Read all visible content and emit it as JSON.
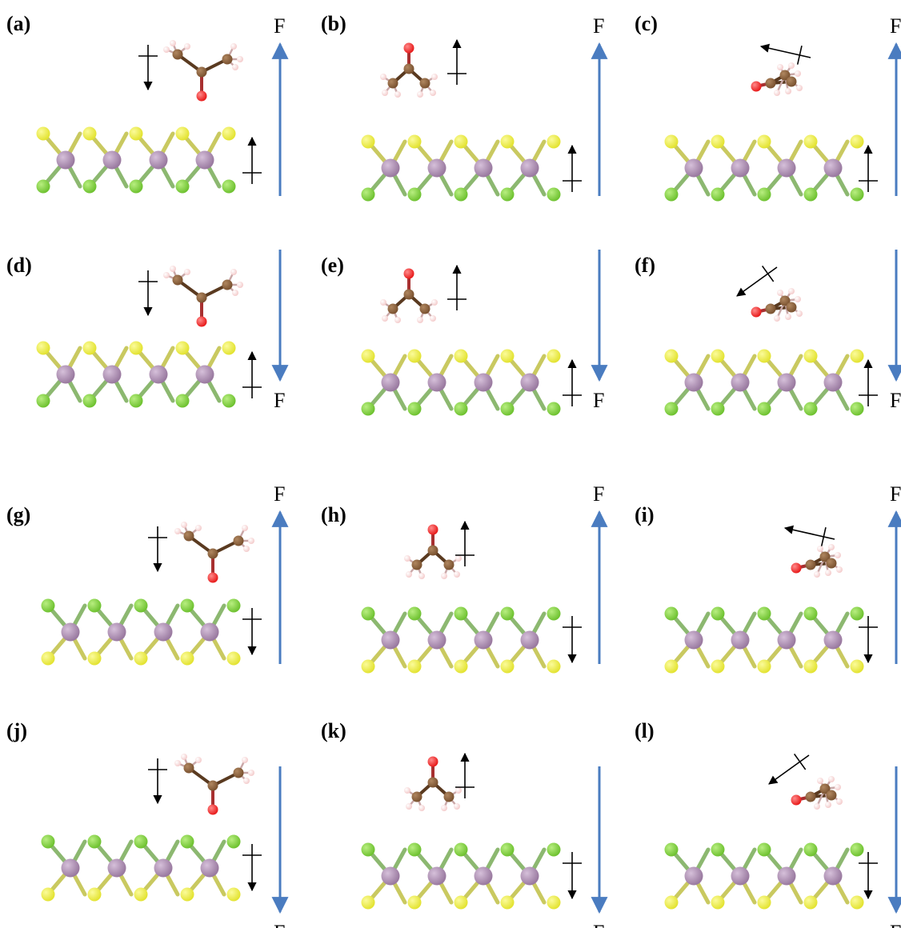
{
  "figure": {
    "field_symbol": "F",
    "colors": {
      "field_arrow": "#4a7cc0",
      "sulfur": "#e3e332",
      "chlorine": "#6fc231",
      "metal": "#9a7aa0",
      "carbon": "#7a5230",
      "oxygen": "#e81c1c",
      "hydrogen": "#f4cccc",
      "bond_metal_S": "#c9c960",
      "bond_metal_Cl": "#8cb870"
    },
    "panels": [
      {
        "label": "(a)",
        "layer_top": "S",
        "field": "up",
        "molecule": "side",
        "mol_dipole": "down",
        "layer_dipole": "up"
      },
      {
        "label": "(b)",
        "layer_top": "S",
        "field": "up",
        "molecule": "front",
        "mol_dipole": "up",
        "layer_dipole": "up"
      },
      {
        "label": "(c)",
        "layer_top": "S",
        "field": "up",
        "molecule": "end",
        "mol_dipole": "left-up",
        "layer_dipole": "up"
      },
      {
        "label": "(d)",
        "layer_top": "S",
        "field": "down",
        "molecule": "side",
        "mol_dipole": "down",
        "layer_dipole": "up"
      },
      {
        "label": "(e)",
        "layer_top": "S",
        "field": "down",
        "molecule": "front",
        "mol_dipole": "up",
        "layer_dipole": "up"
      },
      {
        "label": "(f)",
        "layer_top": "S",
        "field": "down",
        "molecule": "end",
        "mol_dipole": "left-down",
        "layer_dipole": "up"
      },
      {
        "label": "(g)",
        "layer_top": "Cl",
        "field": "up",
        "molecule": "side",
        "mol_dipole": "down",
        "layer_dipole": "down"
      },
      {
        "label": "(h)",
        "layer_top": "Cl",
        "field": "up",
        "molecule": "front",
        "mol_dipole": "up",
        "layer_dipole": "down"
      },
      {
        "label": "(i)",
        "layer_top": "Cl",
        "field": "up",
        "molecule": "end",
        "mol_dipole": "left-up",
        "layer_dipole": "down"
      },
      {
        "label": "(j)",
        "layer_top": "Cl",
        "field": "down",
        "molecule": "side",
        "mol_dipole": "down",
        "layer_dipole": "down"
      },
      {
        "label": "(k)",
        "layer_top": "Cl",
        "field": "down",
        "molecule": "front",
        "mol_dipole": "up",
        "layer_dipole": "down"
      },
      {
        "label": "(l)",
        "layer_top": "Cl",
        "field": "down",
        "molecule": "end",
        "mol_dipole": "left-down",
        "layer_dipole": "down"
      }
    ]
  }
}
